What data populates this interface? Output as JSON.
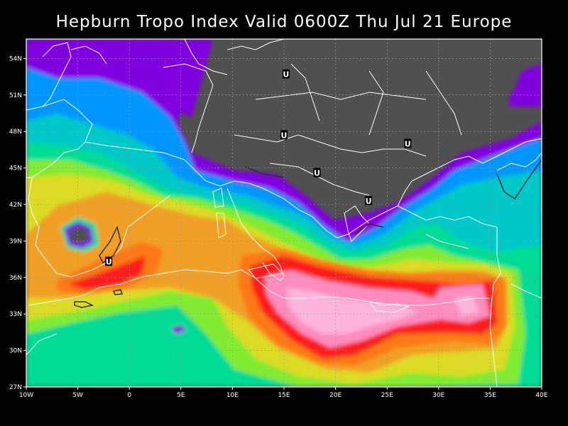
{
  "title": "Hepburn Tropo Index Valid 0600Z Thu Jul 21 Europe",
  "lat_labels": [
    "54N",
    "51N",
    "48N",
    "45N",
    "42N",
    "39N",
    "36N",
    "33N",
    "30N",
    "27N"
  ],
  "lon_labels": [
    "10W",
    "5W",
    "0",
    "5E",
    "10E",
    "15E",
    "20E",
    "25E",
    "30E",
    "35E",
    "40E"
  ],
  "markers": [
    {
      "label": "U",
      "lon": 15.2,
      "lat": 52.7
    },
    {
      "label": "U",
      "lon": 15.0,
      "lat": 47.7
    },
    {
      "label": "U",
      "lon": 27.0,
      "lat": 47.0
    },
    {
      "label": "U",
      "lon": 18.2,
      "lat": 44.6
    },
    {
      "label": "U",
      "lon": 23.2,
      "lat": 42.3
    },
    {
      "label": "U",
      "lon": -2.0,
      "lat": 37.3
    }
  ],
  "colors": {
    "background": "#000000",
    "land": "#505050",
    "coast": "#ffffff",
    "levels": [
      "#8000e0",
      "#0096ff",
      "#00c8c8",
      "#00dc96",
      "#82eb32",
      "#dcdc28",
      "#f0a028",
      "#ff7814",
      "#ff1e1e",
      "#ff8cbe",
      "#ffb4dc"
    ]
  }
}
